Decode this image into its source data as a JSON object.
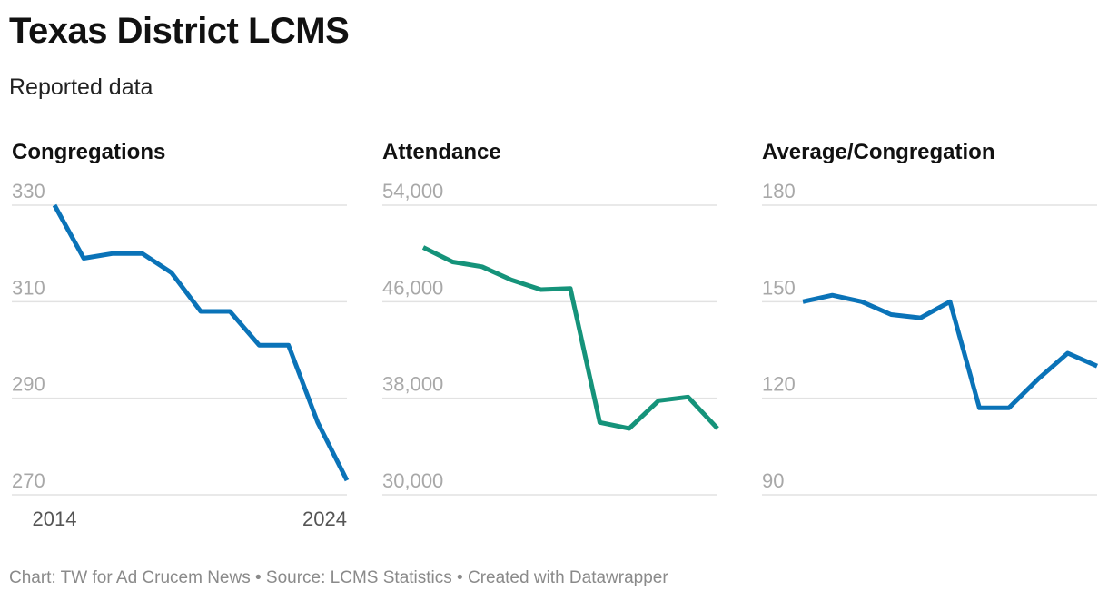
{
  "header": {
    "title": "Texas District LCMS",
    "subtitle": "Reported data"
  },
  "footer": {
    "text": "Chart: TW for Ad Crucem News • Source: LCMS Statistics • Created with Datawrapper"
  },
  "chart_data": [
    {
      "type": "line",
      "title": "Congregations",
      "x": [
        2014,
        2015,
        2016,
        2017,
        2018,
        2019,
        2020,
        2021,
        2022,
        2023,
        2024
      ],
      "x_tick_labels": [
        "2014",
        "2024"
      ],
      "y_ticks": [
        330,
        310,
        290,
        270
      ],
      "y_tick_labels": [
        "330",
        "310",
        "290",
        "270"
      ],
      "ylim": [
        270,
        330
      ],
      "color": "#0a73b8",
      "series": [
        {
          "name": "Congregations",
          "values": [
            330,
            319,
            320,
            320,
            316,
            308,
            308,
            301,
            301,
            285,
            273
          ]
        }
      ]
    },
    {
      "type": "line",
      "title": "Attendance",
      "x": [
        2014,
        2015,
        2016,
        2017,
        2018,
        2019,
        2020,
        2021,
        2022,
        2023,
        2024
      ],
      "x_tick_labels": [],
      "y_ticks": [
        54000,
        46000,
        38000,
        30000
      ],
      "y_tick_labels": [
        "54,000",
        "46,000",
        "38,000",
        "30,000"
      ],
      "ylim": [
        30000,
        54000
      ],
      "color": "#15937a",
      "series": [
        {
          "name": "Attendance",
          "values": [
            50500,
            49300,
            48900,
            47800,
            47000,
            47100,
            36000,
            35500,
            37800,
            38100,
            35500
          ]
        }
      ]
    },
    {
      "type": "line",
      "title": "Average/Congregation",
      "x": [
        2014,
        2015,
        2016,
        2017,
        2018,
        2019,
        2020,
        2021,
        2022,
        2023,
        2024
      ],
      "x_tick_labels": [],
      "y_ticks": [
        180,
        150,
        120,
        90
      ],
      "y_tick_labels": [
        "180",
        "150",
        "120",
        "90"
      ],
      "ylim": [
        90,
        180
      ],
      "color": "#0a73b8",
      "series": [
        {
          "name": "Average/Congregation",
          "values": [
            150,
            152,
            150,
            146,
            145,
            150,
            117,
            117,
            126,
            134,
            130
          ]
        }
      ]
    }
  ]
}
